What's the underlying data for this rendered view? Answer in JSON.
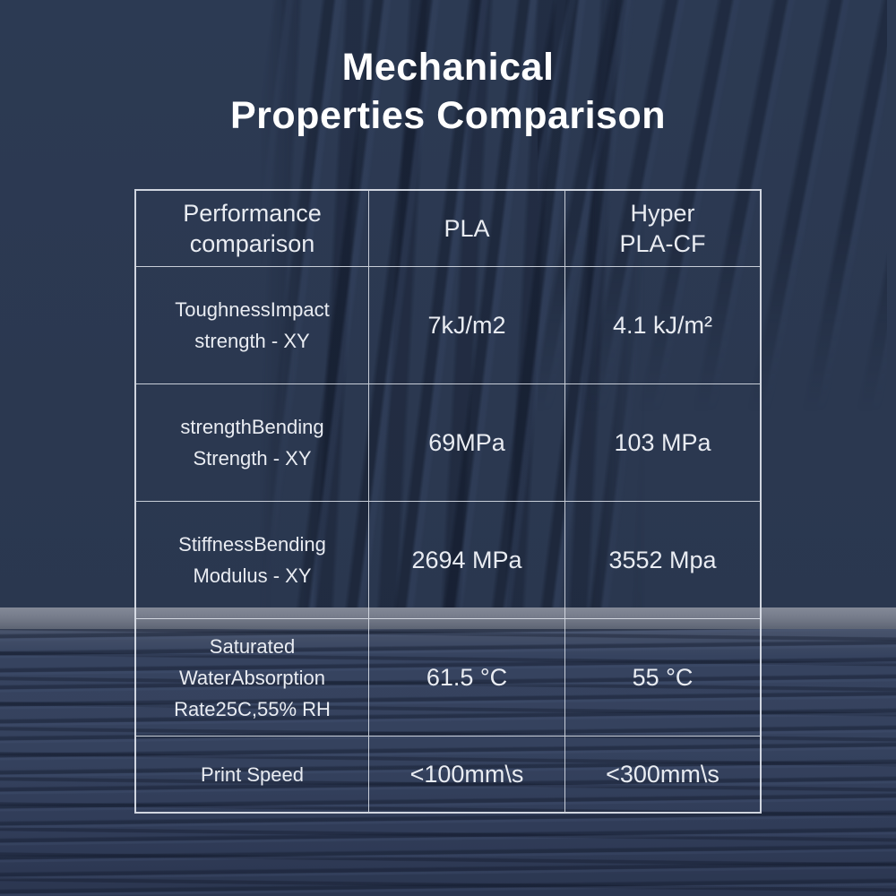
{
  "display": {
    "title": "Mechanical\nProperties Comparison",
    "header_col3": "Hyper\nPLA-CF"
  },
  "chart_data": {
    "type": "table",
    "title": "Mechanical Properties Comparison",
    "columns": [
      "Performance comparison",
      "PLA",
      "Hyper PLA-CF"
    ],
    "rows": [
      [
        "ToughnessImpact strength - XY",
        "7kJ/m2",
        "4.1 kJ/m²"
      ],
      [
        "strengthBending Strength - XY",
        "69MPa",
        "103 MPa"
      ],
      [
        "StiffnessBending Modulus - XY",
        "2694 MPa",
        "3552 Mpa"
      ],
      [
        "Saturated WaterAbsorption Rate25C,55% RH",
        "61.5 °C",
        "55 °C"
      ],
      [
        "Print Speed",
        "<100mm\\s",
        "<300mm\\s"
      ]
    ],
    "layout_hints": {
      "grid": "on",
      "cell_background": "transparent-over-photo",
      "header_position": "top"
    }
  },
  "colors": {
    "background_navy": "#2c3a53",
    "spool_rim_gray": "#767c8b",
    "coil_stripe_navy": "#35425e",
    "table_border": "#dee3eb",
    "table_text": "#e9ecf2",
    "title_text": "#ffffff"
  }
}
